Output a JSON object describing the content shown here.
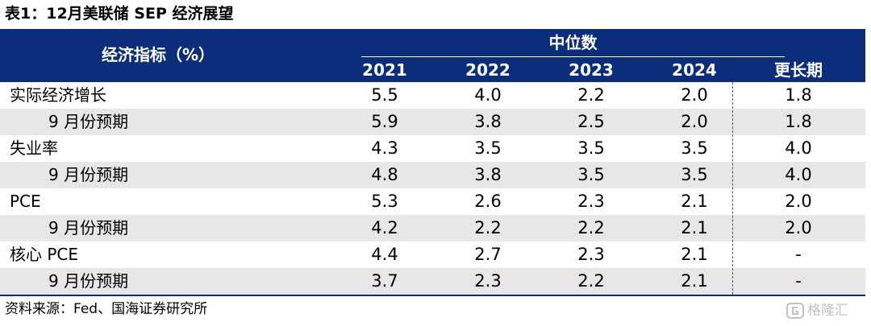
{
  "title": "表1：12月美联储 SEP 经济展望",
  "header": {
    "indicator_label": "经济指标（%）",
    "median_label": "中位数",
    "columns": [
      "2021",
      "2022",
      "2023",
      "2024",
      "更长期"
    ]
  },
  "rows": [
    {
      "label": "实际经济增长",
      "values": [
        "5.5",
        "4.0",
        "2.2",
        "2.0",
        "1.8"
      ]
    },
    {
      "label": "9 月份预期",
      "values": [
        "5.9",
        "3.8",
        "2.5",
        "2.0",
        "1.8"
      ]
    },
    {
      "label": "失业率",
      "values": [
        "4.3",
        "3.5",
        "3.5",
        "3.5",
        "4.0"
      ]
    },
    {
      "label": "9 月份预期",
      "values": [
        "4.8",
        "3.8",
        "3.5",
        "3.5",
        "4.0"
      ]
    },
    {
      "label": "PCE",
      "values": [
        "5.3",
        "2.6",
        "2.3",
        "2.1",
        "2.0"
      ]
    },
    {
      "label": "9 月份预期",
      "values": [
        "4.2",
        "2.2",
        "2.2",
        "2.1",
        "2.0"
      ]
    },
    {
      "label": "核心 PCE",
      "values": [
        "4.4",
        "2.7",
        "2.3",
        "2.1",
        "-"
      ]
    },
    {
      "label": "9 月份预期",
      "values": [
        "3.7",
        "2.3",
        "2.2",
        "2.1",
        "-"
      ]
    }
  ],
  "source": "资料来源：Fed、国海证券研究所",
  "watermark": "格隆汇",
  "colors": {
    "header_bg": "#0c2d7a",
    "row_shade": "#e7e7e7",
    "watermark": "#c2c2c2"
  }
}
